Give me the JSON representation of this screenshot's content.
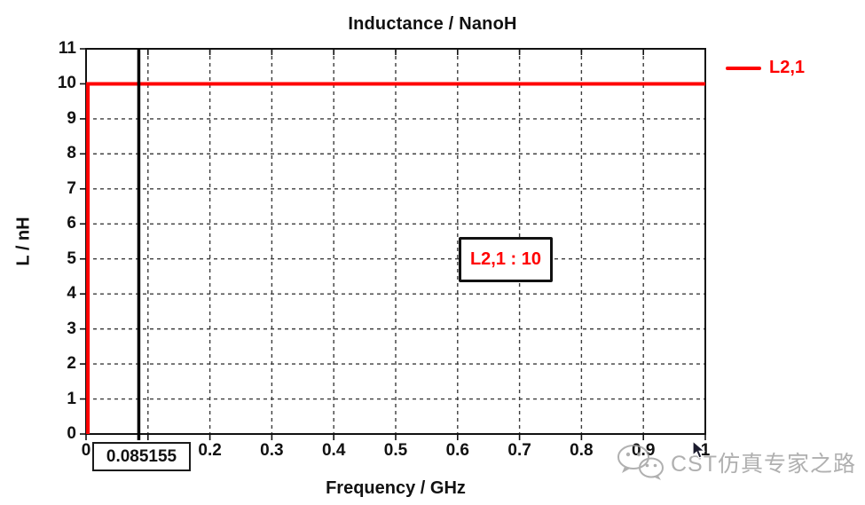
{
  "window": {
    "background": "#ffffff"
  },
  "chart_data": {
    "type": "line",
    "title": "Inductance / NanoH",
    "xlabel": "Frequency / GHz",
    "ylabel": "L / nH",
    "xlim": [
      0,
      1
    ],
    "ylim": [
      0,
      11
    ],
    "grid": "dashed",
    "grid_color": "#3c3c3c",
    "x_ticks": {
      "values": [
        0,
        0.1,
        0.2,
        0.3,
        0.4,
        0.5,
        0.6,
        0.7,
        0.8,
        0.9,
        1
      ],
      "labels": [
        "0",
        "",
        "0.2",
        "0.3",
        "0.4",
        "0.5",
        "0.6",
        "0.7",
        "0.8",
        "0.9",
        "1"
      ]
    },
    "y_ticks": {
      "values": [
        0,
        1,
        2,
        3,
        4,
        5,
        6,
        7,
        8,
        9,
        10,
        11
      ],
      "labels": [
        "0",
        "1",
        "2",
        "3",
        "4",
        "5",
        "6",
        "7",
        "8",
        "9",
        "10",
        "11"
      ]
    },
    "series": [
      {
        "name": "L2,1",
        "color": "#ff0000",
        "points": [
          [
            0.003,
            0
          ],
          [
            0.003,
            10
          ],
          [
            1,
            10
          ]
        ]
      }
    ],
    "legend": {
      "position": "right",
      "entries": [
        {
          "label": "L2,1",
          "color": "#ff0000"
        }
      ]
    },
    "marker": {
      "x": 0.085155,
      "label": "0.085155",
      "color": "#000000"
    },
    "annotation": {
      "text": "L2,1 : 10",
      "x": 0.677,
      "y": 5,
      "color": "#ff0000"
    }
  },
  "watermark": {
    "text": "CST仿真专家之路",
    "icon": "wechat-icon"
  }
}
